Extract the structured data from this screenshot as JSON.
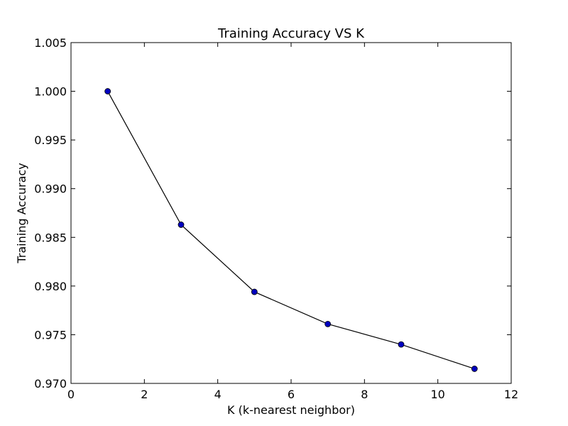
{
  "chart_data": {
    "type": "line",
    "title": "Training Accuracy  VS  K",
    "xlabel": "K (k-nearest neighbor)",
    "ylabel": "Training Accuracy",
    "xlim": [
      0,
      12
    ],
    "ylim": [
      0.97,
      1.005
    ],
    "xticks": [
      0,
      2,
      4,
      6,
      8,
      10,
      12
    ],
    "yticks": [
      0.97,
      0.975,
      0.98,
      0.985,
      0.99,
      0.995,
      1.0,
      1.005
    ],
    "ytick_decimals": 3,
    "grid": false,
    "series": [
      {
        "x": [
          1,
          3,
          5,
          7,
          9,
          11
        ],
        "values": [
          1.0,
          0.9863,
          0.9794,
          0.9761,
          0.974,
          0.9715
        ],
        "line_color": "#000000",
        "marker_color": "#0000bf"
      }
    ]
  }
}
